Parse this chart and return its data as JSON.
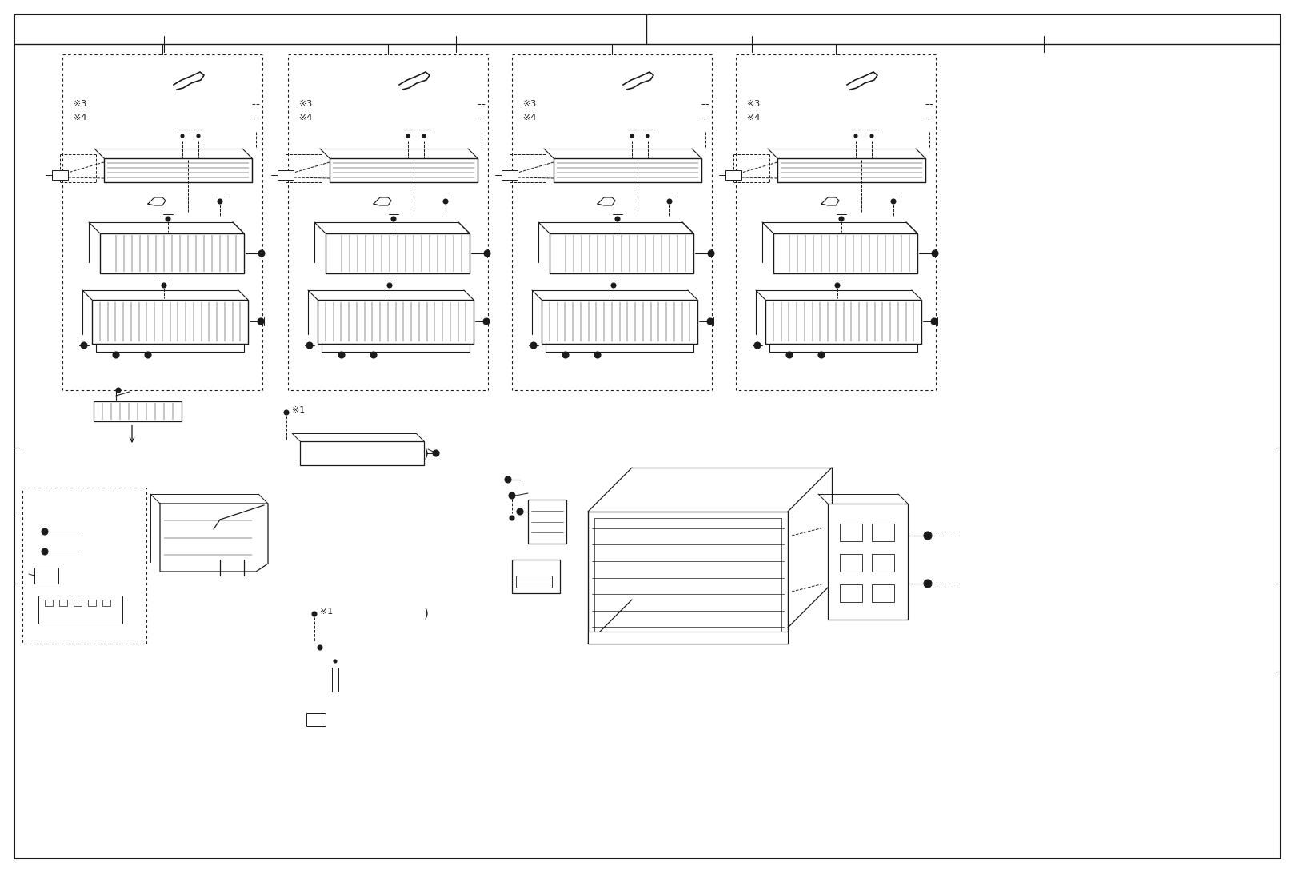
{
  "bg": "#ffffff",
  "lc": "#1a1a1a",
  "fig_w": 16.19,
  "fig_h": 10.92,
  "dpi": 100
}
